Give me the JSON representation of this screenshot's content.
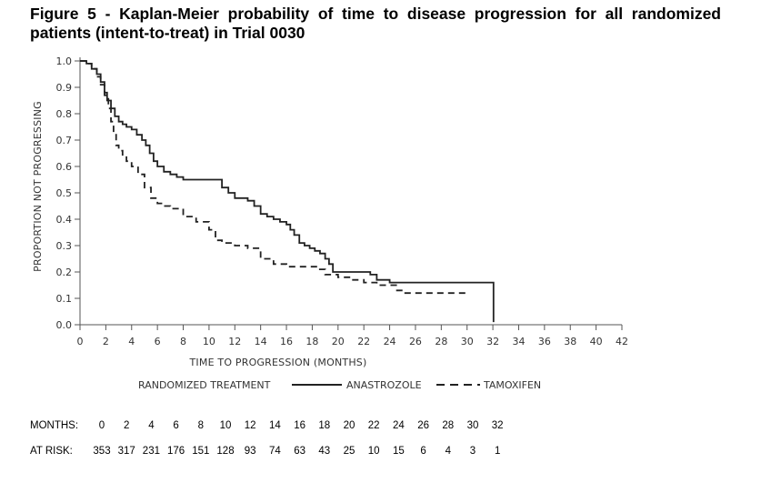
{
  "figure": {
    "title": "Figure 5 - Kaplan-Meier probability of time to disease progression for all randomized patients (intent-to-treat) in Trial 0030"
  },
  "chart_data": {
    "type": "line",
    "title": "Figure 5 - Kaplan-Meier probability of time to disease progression for all randomized patients (intent-to-treat) in Trial 0030",
    "xlabel": "TIME TO PROGRESSION (MONTHS)",
    "ylabel": "PROPORTION NOT PROGRESSING",
    "xlim": [
      0,
      42
    ],
    "ylim": [
      0,
      1.0
    ],
    "x_ticks": [
      0,
      2,
      4,
      6,
      8,
      10,
      12,
      14,
      16,
      18,
      20,
      22,
      24,
      26,
      28,
      30,
      32,
      34,
      36,
      38,
      40,
      42
    ],
    "y_ticks": [
      "0.0",
      "0.1",
      "0.2",
      "0.3",
      "0.4",
      "0.5",
      "0.6",
      "0.7",
      "0.8",
      "0.9",
      "1.0"
    ],
    "grid": false,
    "legend": {
      "title": "RANDOMIZED TREATMENT",
      "placement": "bottom"
    },
    "series": [
      {
        "name": "ANASTROZOLE",
        "style": "solid",
        "color": "#222222",
        "x": [
          0,
          0.5,
          0.9,
          1.3,
          1.6,
          1.9,
          2.1,
          2.4,
          2.7,
          3.0,
          3.3,
          3.6,
          4.0,
          4.4,
          4.8,
          5.1,
          5.4,
          5.7,
          6.0,
          6.5,
          7.0,
          7.5,
          8.0,
          9.0,
          10.0,
          10.6,
          11.0,
          11.5,
          12.0,
          13.0,
          13.5,
          14.0,
          14.5,
          15.0,
          15.5,
          16.0,
          16.3,
          16.6,
          17.0,
          17.4,
          17.8,
          18.2,
          18.6,
          19.0,
          19.3,
          19.6,
          20.0,
          21.0,
          22.0,
          22.5,
          23.0,
          23.5,
          24.0,
          25.0,
          26.0,
          28.0,
          30.0,
          32.0,
          32.05
        ],
        "y": [
          1.0,
          0.99,
          0.97,
          0.95,
          0.92,
          0.88,
          0.85,
          0.82,
          0.79,
          0.77,
          0.76,
          0.75,
          0.74,
          0.72,
          0.7,
          0.68,
          0.65,
          0.62,
          0.6,
          0.58,
          0.57,
          0.56,
          0.55,
          0.55,
          0.55,
          0.55,
          0.52,
          0.5,
          0.48,
          0.47,
          0.45,
          0.42,
          0.41,
          0.4,
          0.39,
          0.38,
          0.36,
          0.34,
          0.31,
          0.3,
          0.29,
          0.28,
          0.27,
          0.25,
          0.23,
          0.2,
          0.2,
          0.2,
          0.2,
          0.19,
          0.17,
          0.17,
          0.16,
          0.16,
          0.16,
          0.16,
          0.16,
          0.16,
          0.01
        ]
      },
      {
        "name": "TAMOXIFEN",
        "style": "dashed",
        "color": "#222222",
        "x": [
          0,
          0.5,
          0.9,
          1.3,
          1.6,
          1.9,
          2.2,
          2.4,
          2.6,
          2.8,
          3.0,
          3.3,
          3.6,
          4.0,
          4.5,
          5.0,
          5.5,
          6.0,
          6.5,
          7.0,
          8.0,
          9.0,
          10.0,
          10.5,
          11.0,
          12.0,
          13.0,
          14.0,
          15.0,
          16.0,
          17.0,
          18.0,
          18.5,
          19.0,
          20.0,
          21.0,
          22.0,
          23.0,
          24.0,
          24.5,
          25.0,
          26.0,
          28.0,
          30.0
        ],
        "y": [
          1.0,
          0.99,
          0.97,
          0.94,
          0.91,
          0.87,
          0.82,
          0.77,
          0.72,
          0.68,
          0.66,
          0.64,
          0.62,
          0.6,
          0.57,
          0.52,
          0.48,
          0.46,
          0.45,
          0.44,
          0.41,
          0.39,
          0.36,
          0.32,
          0.31,
          0.3,
          0.29,
          0.25,
          0.23,
          0.22,
          0.22,
          0.22,
          0.21,
          0.19,
          0.18,
          0.17,
          0.16,
          0.15,
          0.15,
          0.13,
          0.12,
          0.12,
          0.12,
          0.12
        ]
      }
    ]
  },
  "risk_table": {
    "months_label": "MONTHS:",
    "at_risk_label": "AT RISK:",
    "months": [
      "0",
      "2",
      "4",
      "6",
      "8",
      "10",
      "12",
      "14",
      "16",
      "18",
      "20",
      "22",
      "24",
      "26",
      "28",
      "30",
      "32"
    ],
    "at_risk": [
      "353",
      "317",
      "231",
      "176",
      "151",
      "128",
      "93",
      "74",
      "63",
      "43",
      "25",
      "10",
      "15",
      "6",
      "4",
      "3",
      "1"
    ]
  }
}
